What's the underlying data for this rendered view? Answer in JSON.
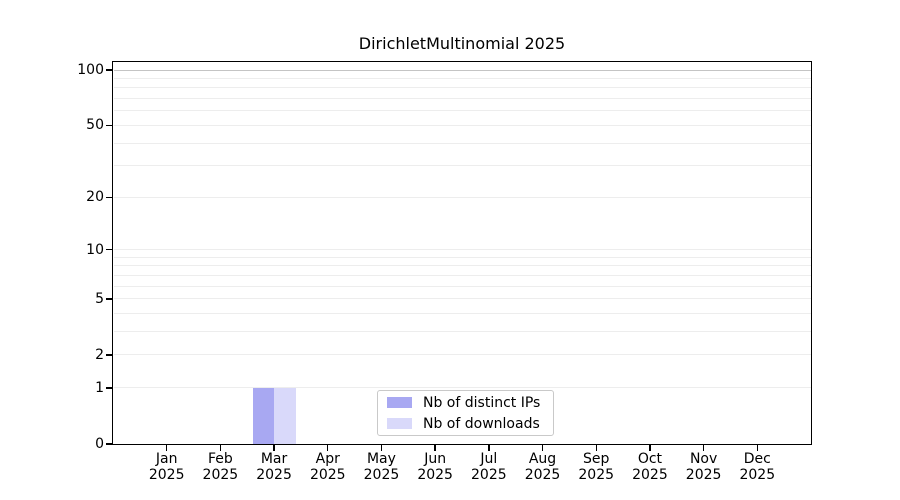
{
  "title": "DirichletMultinomial 2025",
  "colors": {
    "bar_distinct_ips": "#a8a8f2",
    "bar_downloads": "#d9d9fa",
    "grid_minor": "#ededed",
    "grid_major": "#c4c4c4",
    "axis": "#000000",
    "legend_border": "#c9c9c9",
    "background": "#ffffff",
    "text": "#000000"
  },
  "chart_data": {
    "type": "bar",
    "title": "DirichletMultinomial 2025",
    "categories": [
      "Jan 2025",
      "Feb 2025",
      "Mar 2025",
      "Apr 2025",
      "May 2025",
      "Jun 2025",
      "Jul 2025",
      "Aug 2025",
      "Sep 2025",
      "Oct 2025",
      "Nov 2025",
      "Dec 2025"
    ],
    "series": [
      {
        "name": "Nb of distinct IPs",
        "color": "#a8a8f2",
        "values": [
          0,
          0,
          1,
          0,
          0,
          0,
          0,
          0,
          0,
          0,
          0,
          0
        ]
      },
      {
        "name": "Nb of downloads",
        "color": "#d9d9fa",
        "values": [
          0,
          0,
          1,
          0,
          0,
          0,
          0,
          0,
          0,
          0,
          0,
          0
        ]
      }
    ],
    "xlabel": "",
    "ylabel": "",
    "y_scale": "log1p",
    "ylim": [
      0,
      110.6
    ],
    "y_ticks": [
      0,
      1,
      2,
      5,
      10,
      20,
      50,
      100
    ],
    "gridlines": {
      "minor": [
        1,
        2,
        3,
        4,
        5,
        6,
        7,
        8,
        9,
        10,
        20,
        30,
        40,
        50,
        60,
        70,
        80,
        90
      ],
      "major": [
        100
      ]
    },
    "grid": true,
    "legend_position": "lower center"
  }
}
